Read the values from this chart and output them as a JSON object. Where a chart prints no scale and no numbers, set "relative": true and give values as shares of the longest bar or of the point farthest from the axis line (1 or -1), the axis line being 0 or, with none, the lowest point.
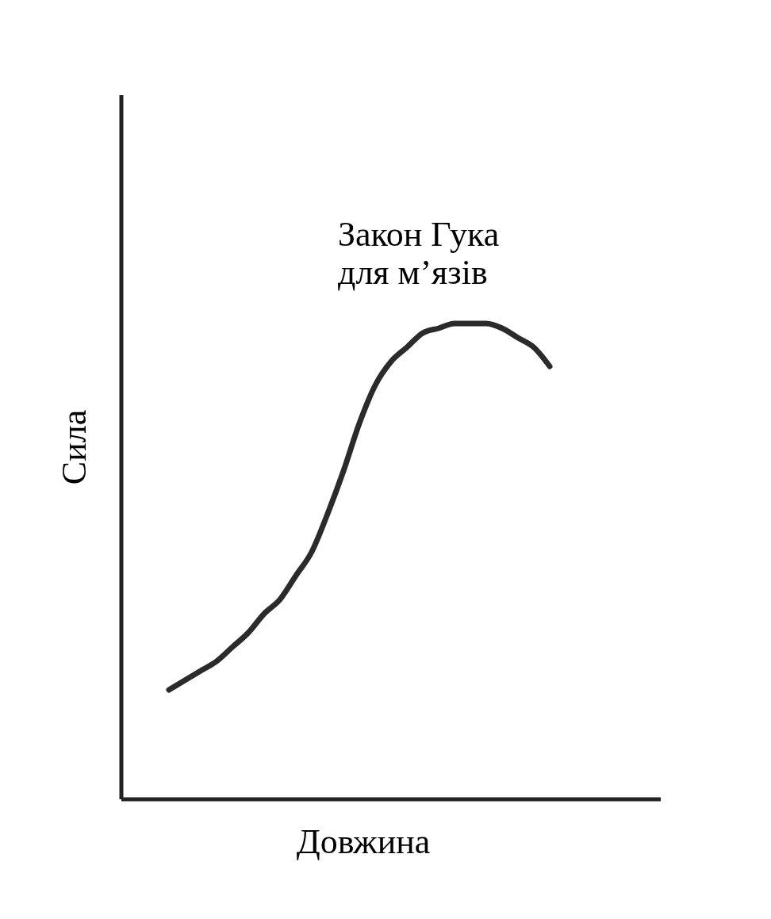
{
  "chart_data": {
    "type": "line",
    "relative": true,
    "xlabel": "Довжина",
    "ylabel": "Сила",
    "annotations": [
      "Закон Гука\nдля м’язів"
    ],
    "categories": [
      null,
      null,
      null,
      null,
      null,
      null,
      null,
      null,
      null,
      null,
      null,
      null,
      null,
      null,
      null,
      null,
      null,
      null,
      null,
      null,
      null,
      null,
      null,
      null,
      null,
      null,
      null,
      null,
      null,
      null,
      null,
      null,
      null,
      null,
      null
    ],
    "series": [
      {
        "color": "#2b2b2b",
        "values": [
          null,
          null,
          null,
          0.23,
          0.25,
          0.27,
          0.29,
          0.32,
          0.35,
          0.39,
          0.42,
          0.47,
          0.52,
          0.6,
          0.69,
          0.79,
          0.87,
          0.92,
          0.95,
          0.98,
          0.99,
          1,
          1,
          1,
          0.99,
          0.97,
          0.95,
          0.91,
          null,
          null,
          null,
          null,
          null,
          null,
          null
        ]
      }
    ]
  }
}
